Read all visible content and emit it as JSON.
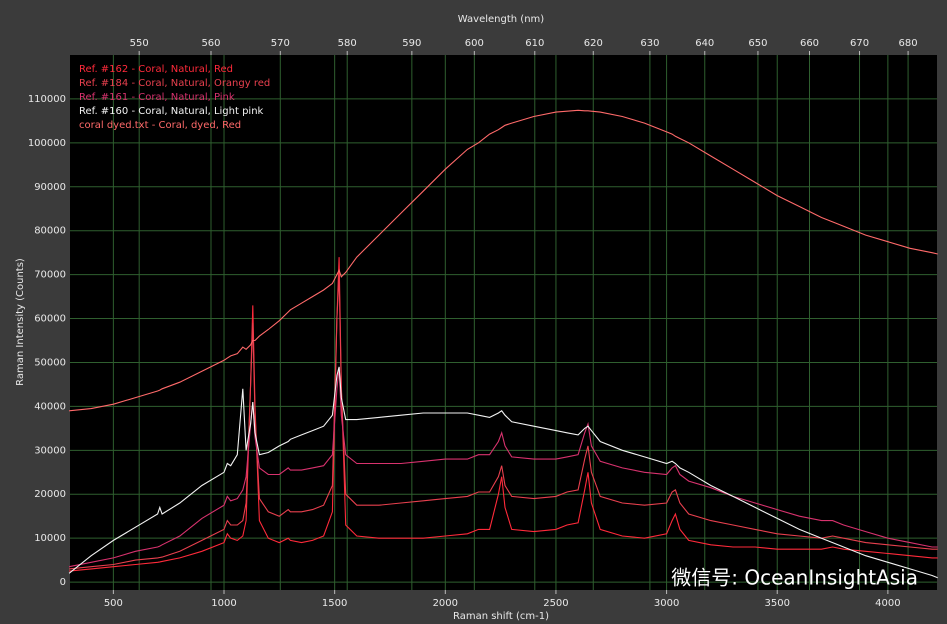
{
  "chart_data": {
    "type": "line",
    "title": "Wavelength (nm)",
    "x_label": "Raman shift (cm-1)",
    "y_label": "Raman Intensity (Counts)",
    "watermark": "微信号: OceanInsightAsia",
    "xlim": [
      304,
      4222
    ],
    "ylim": [
      -1800,
      120000
    ],
    "xticks": [
      500,
      1000,
      1500,
      2000,
      2500,
      3000,
      3500,
      4000
    ],
    "yticks": [
      0,
      10000,
      20000,
      30000,
      40000,
      50000,
      60000,
      70000,
      80000,
      90000,
      100000,
      110000
    ],
    "x2lim": [
      540.7,
      686.1
    ],
    "x2scale": "reciprocal",
    "x2ticks": [
      550,
      560,
      570,
      580,
      590,
      600,
      610,
      620,
      630,
      640,
      650,
      660,
      670,
      680
    ],
    "grid": true,
    "legend": "top-left",
    "x": [
      300,
      400,
      500,
      600,
      700,
      710,
      720,
      800,
      900,
      1000,
      1015,
      1030,
      1060,
      1085,
      1100,
      1120,
      1130,
      1140,
      1160,
      1200,
      1250,
      1290,
      1300,
      1350,
      1400,
      1450,
      1490,
      1510,
      1520,
      1530,
      1550,
      1600,
      1700,
      1800,
      1900,
      2000,
      2100,
      2150,
      2200,
      2240,
      2255,
      2270,
      2300,
      2400,
      2500,
      2550,
      2600,
      2630,
      2645,
      2660,
      2700,
      2800,
      2900,
      3000,
      3025,
      3040,
      3060,
      3100,
      3200,
      3300,
      3400,
      3500,
      3600,
      3700,
      3750,
      3800,
      3900,
      4000,
      4100,
      4200,
      4225
    ],
    "series": [
      {
        "name": "Ref. #162 - Coral, Natural, Red",
        "color": "#ff2a3a",
        "values": [
          2500,
          3000,
          3500,
          4000,
          4500,
          4600,
          4700,
          5500,
          7000,
          9000,
          11000,
          10000,
          9500,
          10500,
          14000,
          45000,
          63000,
          40000,
          14000,
          10000,
          9000,
          10000,
          9500,
          9000,
          9500,
          10500,
          16000,
          60000,
          74000,
          45000,
          13000,
          10500,
          10000,
          10000,
          10000,
          10500,
          11000,
          12000,
          12000,
          20000,
          24000,
          17000,
          12000,
          11500,
          12000,
          13000,
          13500,
          21000,
          25000,
          18000,
          12000,
          10500,
          10000,
          11000,
          14000,
          15500,
          12000,
          9500,
          8500,
          8000,
          8000,
          7500,
          7500,
          7500,
          8000,
          7500,
          7000,
          6500,
          6000,
          5500,
          5500
        ]
      },
      {
        "name": "Ref. #184 - Coral, Natural, Orangy red",
        "color": "#e8404e",
        "values": [
          3000,
          3500,
          4000,
          5000,
          5500,
          5600,
          5700,
          7000,
          9500,
          12000,
          14000,
          13000,
          13000,
          14000,
          18000,
          45000,
          59000,
          38000,
          19000,
          16000,
          15000,
          16500,
          16000,
          16000,
          16500,
          17500,
          22000,
          60000,
          70000,
          44000,
          20000,
          17500,
          17500,
          18000,
          18500,
          19000,
          19500,
          20500,
          20500,
          24000,
          26500,
          22000,
          19500,
          19000,
          19500,
          20500,
          21000,
          28000,
          31000,
          25000,
          19500,
          18000,
          17500,
          18000,
          20500,
          21000,
          18000,
          15500,
          14000,
          13000,
          12000,
          11000,
          10500,
          10000,
          10500,
          10000,
          9000,
          8500,
          8000,
          7500,
          7500
        ]
      },
      {
        "name": "Ref. #161 - Coral, Natural, Pink",
        "color": "#d8326e",
        "values": [
          3500,
          4500,
          5500,
          7000,
          8000,
          8200,
          8500,
          10500,
          14500,
          17500,
          19500,
          18500,
          19000,
          21000,
          24000,
          36000,
          41000,
          33000,
          26000,
          24500,
          24500,
          26000,
          25500,
          25500,
          26000,
          26500,
          29000,
          44000,
          49000,
          38000,
          29000,
          27000,
          27000,
          27000,
          27500,
          28000,
          28000,
          29000,
          29000,
          32000,
          34000,
          31000,
          28500,
          28000,
          28000,
          28500,
          29000,
          34000,
          36000,
          31000,
          27500,
          26000,
          25000,
          24500,
          26000,
          26500,
          24500,
          23000,
          21500,
          19500,
          18000,
          16500,
          15000,
          14000,
          14000,
          13000,
          11500,
          10000,
          9000,
          8000,
          8000
        ]
      },
      {
        "name": "Ref. #160 - Coral, Natural, Light pink",
        "color": "#f2f2f2",
        "values": [
          2000,
          6000,
          9500,
          12500,
          15500,
          17000,
          15500,
          18000,
          22000,
          25000,
          27000,
          26500,
          29000,
          44000,
          30000,
          36000,
          41000,
          34000,
          29000,
          29500,
          31000,
          32000,
          32500,
          33500,
          34500,
          35500,
          38000,
          47000,
          49000,
          42000,
          37000,
          37000,
          37500,
          38000,
          38500,
          38500,
          38500,
          38000,
          37500,
          38500,
          39000,
          38000,
          36500,
          35500,
          34500,
          34000,
          33500,
          35000,
          35500,
          34500,
          32000,
          30000,
          28500,
          27000,
          27500,
          27000,
          26000,
          25000,
          22000,
          19500,
          17000,
          14500,
          12000,
          10000,
          9000,
          8000,
          6000,
          4500,
          3000,
          1500,
          1000
        ]
      },
      {
        "name": "coral dyed.txt - Coral, dyed, Red",
        "color": "#ff6a6a",
        "values": [
          39000,
          39500,
          40500,
          42000,
          43500,
          43700,
          44000,
          45500,
          48000,
          50500,
          51000,
          51500,
          52000,
          53500,
          53000,
          54000,
          55000,
          55000,
          56000,
          57500,
          59500,
          61500,
          62000,
          63500,
          65000,
          66500,
          68000,
          70000,
          71000,
          69500,
          70500,
          74000,
          79000,
          84000,
          89000,
          94000,
          98500,
          100000,
          102000,
          103000,
          103500,
          104000,
          104500,
          106000,
          107000,
          107200,
          107400,
          107300,
          107300,
          107200,
          107000,
          106000,
          104500,
          102500,
          102000,
          101500,
          101000,
          100000,
          97000,
          94000,
          91000,
          88000,
          85500,
          83000,
          82000,
          81000,
          79000,
          77500,
          76000,
          75000,
          74700
        ]
      }
    ]
  }
}
